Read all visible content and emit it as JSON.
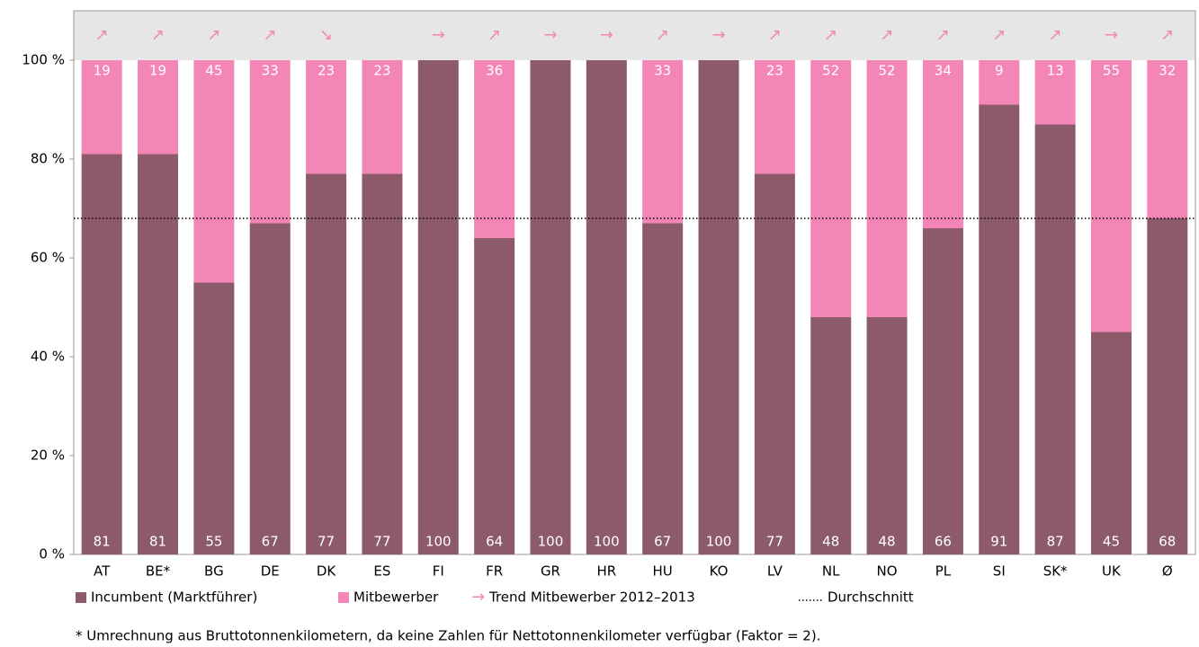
{
  "chart_data": {
    "type": "stacked_bar",
    "categories": [
      "AT",
      "BE*",
      "BG",
      "DE",
      "DK",
      "ES",
      "FI",
      "FR",
      "GR",
      "HR",
      "HU",
      "KO",
      "LV",
      "NL",
      "NO",
      "PL",
      "SI",
      "SK*",
      "UK",
      "Ø"
    ],
    "series": [
      {
        "name": "Incumbent (Marktführer)",
        "color": "#8c5a6b",
        "values": [
          81,
          81,
          55,
          67,
          77,
          77,
          100,
          64,
          100,
          100,
          67,
          100,
          77,
          48,
          48,
          66,
          91,
          87,
          45,
          68
        ]
      },
      {
        "name": "Mitbewerber",
        "color": "#f386b6",
        "values": [
          19,
          19,
          45,
          33,
          23,
          23,
          0,
          36,
          0,
          0,
          33,
          0,
          23,
          52,
          52,
          34,
          9,
          13,
          55,
          32
        ],
        "value_labels": [
          "19",
          "19",
          "45",
          "33",
          "23",
          "23",
          null,
          "36",
          null,
          null,
          "33",
          null,
          "23",
          "52",
          "52",
          "34",
          "9",
          "13",
          "55",
          "32"
        ]
      }
    ],
    "trend": {
      "name": "Trend Mitbewerber 2012–2013",
      "symbol": "→",
      "color": "#f386b6",
      "values": [
        "↗",
        "↗",
        "↗",
        "↗",
        "↘",
        null,
        "→",
        "↗",
        "→",
        "→",
        "↗",
        "→",
        "↗",
        "↗",
        "↗",
        "↗",
        "↗",
        "↗",
        "→",
        "↗"
      ]
    },
    "average": {
      "name": "Durchschnitt",
      "value": 68
    },
    "ylim": [
      0,
      110
    ],
    "yticks": [
      {
        "value": 0,
        "label": "0 %"
      },
      {
        "value": 20,
        "label": "20 %"
      },
      {
        "value": 40,
        "label": "40 %"
      },
      {
        "value": 60,
        "label": "60 %"
      },
      {
        "value": 80,
        "label": "80 %"
      },
      {
        "value": 100,
        "label": "100 %"
      }
    ],
    "footnote": "* Umrechnung aus Bruttotonnenkilometern, da keine Zahlen für Nettotonnenkilometer verfügbar (Faktor = 2)."
  }
}
